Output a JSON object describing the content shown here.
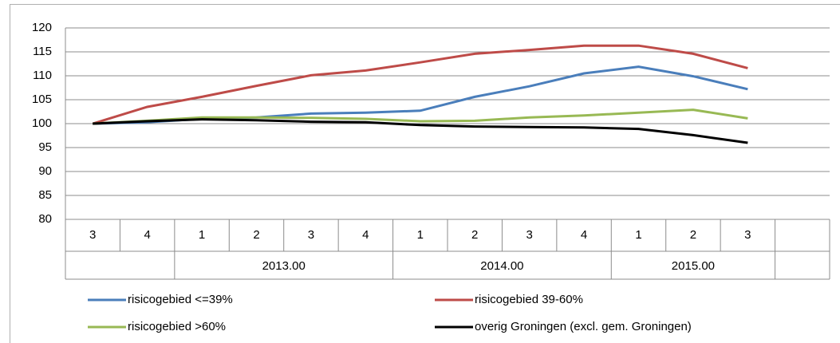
{
  "chart_data": {
    "type": "line",
    "categories": [
      "3",
      "4",
      "1",
      "2",
      "3",
      "4",
      "1",
      "2",
      "3",
      "4",
      "1",
      "2",
      "3",
      null
    ],
    "category_groups": [
      null,
      null,
      "2013.00",
      "2013.00",
      "2013.00",
      "2013.00",
      "2014.00",
      "2014.00",
      "2014.00",
      "2014.00",
      "2015.00",
      "2015.00",
      "2015.00",
      null
    ],
    "series": [
      {
        "name": "risicogebied <=39%",
        "color": "#4a7ebb",
        "values": [
          100,
          100.3,
          101,
          101.3,
          102.1,
          102.3,
          102.7,
          105.6,
          107.8,
          110.5,
          111.9,
          109.9,
          107.2,
          null
        ]
      },
      {
        "name": "risicogebied 39-60%",
        "color": "#be4b48",
        "values": [
          100,
          103.5,
          105.6,
          107.9,
          110.1,
          111.1,
          112.8,
          114.6,
          115.4,
          116.3,
          116.3,
          114.6,
          111.6,
          null
        ]
      },
      {
        "name": "risicogebied >60%",
        "color": "#98b954",
        "values": [
          100,
          100.6,
          101.3,
          101.3,
          101.2,
          101.0,
          100.5,
          100.6,
          101.3,
          101.7,
          102.3,
          102.9,
          101.1,
          null
        ]
      },
      {
        "name": "overig Groningen (excl. gem. Groningen)",
        "color": "#000000",
        "values": [
          100,
          100.5,
          100.9,
          100.7,
          100.4,
          100.3,
          99.7,
          99.4,
          99.3,
          99.2,
          98.9,
          97.6,
          96.0,
          null
        ]
      }
    ],
    "ylim": [
      80,
      120
    ],
    "yticks": [
      80,
      85,
      90,
      95,
      100,
      105,
      110,
      115,
      120
    ],
    "grid": true
  }
}
